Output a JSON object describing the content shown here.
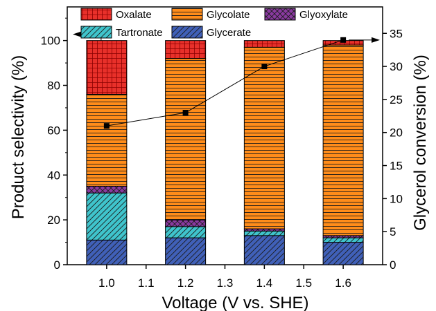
{
  "chart_data": {
    "type": "bar",
    "stacked": true,
    "xlabel": "Voltage (V vs. SHE)",
    "ylabel": "Product selectivity (%)",
    "y2label": "Glycerol conversion (%)",
    "xlim": [
      0.9,
      1.7
    ],
    "ylim": [
      0,
      115
    ],
    "y2lim": [
      0,
      39
    ],
    "x_ticks": [
      "1.0",
      "1.1",
      "1.2",
      "1.3",
      "1.4",
      "1.5",
      "1.6"
    ],
    "y_ticks": [
      "0",
      "20",
      "40",
      "60",
      "80",
      "100"
    ],
    "y2_ticks": [
      "0",
      "5",
      "10",
      "15",
      "20",
      "25",
      "30",
      "35"
    ],
    "categories": [
      1.0,
      1.2,
      1.4,
      1.6
    ],
    "series": [
      {
        "name": "Glycerate",
        "values": [
          11,
          12,
          13,
          10
        ],
        "color": "#4060b8",
        "pattern": "diagonal"
      },
      {
        "name": "Tartronate",
        "values": [
          21,
          5,
          2,
          2
        ],
        "color": "#3fc4cc",
        "pattern": "diagonal"
      },
      {
        "name": "Glyoxylate",
        "values": [
          3,
          3,
          1,
          1
        ],
        "color": "#8a3aa0",
        "pattern": "crosshatch"
      },
      {
        "name": "Glycolate",
        "values": [
          41,
          72,
          81,
          85
        ],
        "color": "#ff8c1a",
        "pattern": "horizontal"
      },
      {
        "name": "Oxalate",
        "values": [
          24,
          8,
          3,
          2
        ],
        "color": "#e8302a",
        "pattern": "grid"
      }
    ],
    "line": {
      "name": "Glycerol conversion",
      "x": [
        1.0,
        1.2,
        1.4,
        1.6
      ],
      "y": [
        21,
        23,
        30,
        34
      ],
      "axis": "right"
    },
    "legend": "top-left"
  }
}
